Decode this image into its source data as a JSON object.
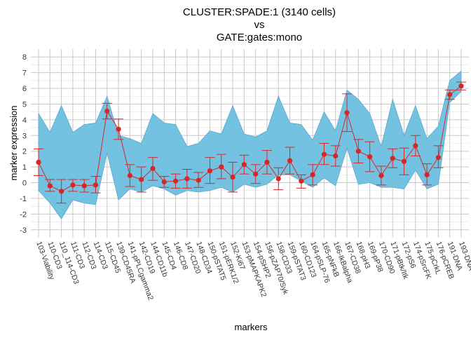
{
  "chart_data": {
    "type": "line",
    "title_lines": [
      "CLUSTER:SPADE:1 (3140 cells)",
      "vs",
      "GATE:gates:mono"
    ],
    "xlabel": "markers",
    "ylabel": "marker expression",
    "ylim": [
      -3.5,
      8.5
    ],
    "yticks": [
      -3,
      -2,
      -1,
      0,
      1,
      2,
      3,
      4,
      5,
      6,
      7,
      8
    ],
    "grid": true,
    "legend": "none",
    "colors": {
      "band_fill": "#74C2E1",
      "band_stroke": "#5AA8CC",
      "line": "#D62728",
      "grid": "#C8C8C8"
    },
    "categories": [
      "103-Viability",
      "110-CD3",
      "110_114-CD3",
      "111-CD3",
      "112-CD3",
      "114-CD3",
      "115-CD45",
      "139-CD45RA",
      "141-pPLCgamma2",
      "142-CD19",
      "144-CD11b",
      "145-CD4",
      "146-CD8",
      "147-CD20",
      "148-CD34",
      "150-pSTAT5",
      "151-pERK1/2",
      "152-Ki67",
      "153-pMAPKAPK2",
      "154-pSHP2",
      "156-pZAP70/Syk",
      "158-CD33",
      "159-pSTAT3",
      "160-CD123",
      "164-pSLP-76",
      "165-pNFkB",
      "166-IkBalpha",
      "167-CD38",
      "168-pH3",
      "169-pP38",
      "170-CD90",
      "171-pBtk/Itk",
      "172-pS6",
      "174-pSrcFK",
      "175-pCrkL",
      "176-pCREB",
      "191-DNA",
      "193-DNA"
    ],
    "series": [
      {
        "role": "gate-band",
        "lower": [
          -0.5,
          -1.3,
          -2.3,
          -1.1,
          -1.3,
          -1.4,
          1.9,
          -1.1,
          -0.4,
          -0.6,
          -0.2,
          -0.4,
          -0.8,
          -0.5,
          -0.6,
          -0.5,
          -0.3,
          -0.6,
          -0.1,
          -0.3,
          -0.1,
          0.5,
          0.5,
          0.1,
          -0.3,
          0.3,
          -0.2,
          2.2,
          -0.1,
          0.0,
          -0.3,
          -0.3,
          -0.4,
          0.8,
          -0.4,
          -0.1,
          5.1,
          5.8
        ],
        "upper": [
          4.4,
          3.2,
          4.9,
          3.2,
          3.7,
          3.8,
          5.5,
          3.0,
          2.8,
          2.5,
          4.4,
          3.8,
          3.7,
          2.3,
          2.5,
          3.3,
          3.1,
          4.9,
          3.1,
          2.9,
          3.3,
          5.5,
          3.8,
          3.7,
          2.7,
          4.5,
          3.3,
          5.9,
          5.3,
          4.4,
          2.3,
          5.3,
          3.0,
          4.9,
          2.8,
          3.6,
          6.5,
          7.1
        ]
      },
      {
        "role": "cluster-mean",
        "values": [
          1.3,
          -0.2,
          -0.55,
          -0.15,
          -0.2,
          -0.15,
          4.55,
          3.4,
          0.45,
          0.2,
          0.9,
          0.05,
          0.1,
          0.25,
          0.15,
          0.75,
          1.0,
          0.35,
          1.15,
          0.55,
          1.3,
          0.25,
          1.4,
          0.1,
          0.5,
          1.8,
          1.7,
          4.45,
          2.0,
          1.65,
          0.45,
          1.55,
          1.35,
          2.35,
          0.5,
          1.6,
          5.6,
          6.15
        ],
        "err_low": [
          0.45,
          -0.55,
          -1.3,
          -0.55,
          -0.6,
          -0.65,
          4.05,
          2.75,
          -0.25,
          -0.6,
          0.15,
          -0.3,
          -0.35,
          -0.35,
          -0.3,
          -0.05,
          0.25,
          -0.6,
          0.55,
          -0.05,
          0.55,
          -0.45,
          0.55,
          -0.35,
          -0.15,
          1.15,
          1.05,
          3.25,
          1.25,
          0.7,
          -0.15,
          0.95,
          0.5,
          1.7,
          -0.15,
          0.95,
          5.3,
          5.9
        ],
        "err_high": [
          2.15,
          0.2,
          0.2,
          0.2,
          0.2,
          0.4,
          5.05,
          4.05,
          1.15,
          1.0,
          1.6,
          0.4,
          0.55,
          0.85,
          0.65,
          1.6,
          1.8,
          1.3,
          1.75,
          1.15,
          2.05,
          0.95,
          2.25,
          0.5,
          1.15,
          2.5,
          2.35,
          5.65,
          2.75,
          2.6,
          1.05,
          2.15,
          2.2,
          3.0,
          1.2,
          2.35,
          5.9,
          6.4
        ]
      }
    ]
  }
}
